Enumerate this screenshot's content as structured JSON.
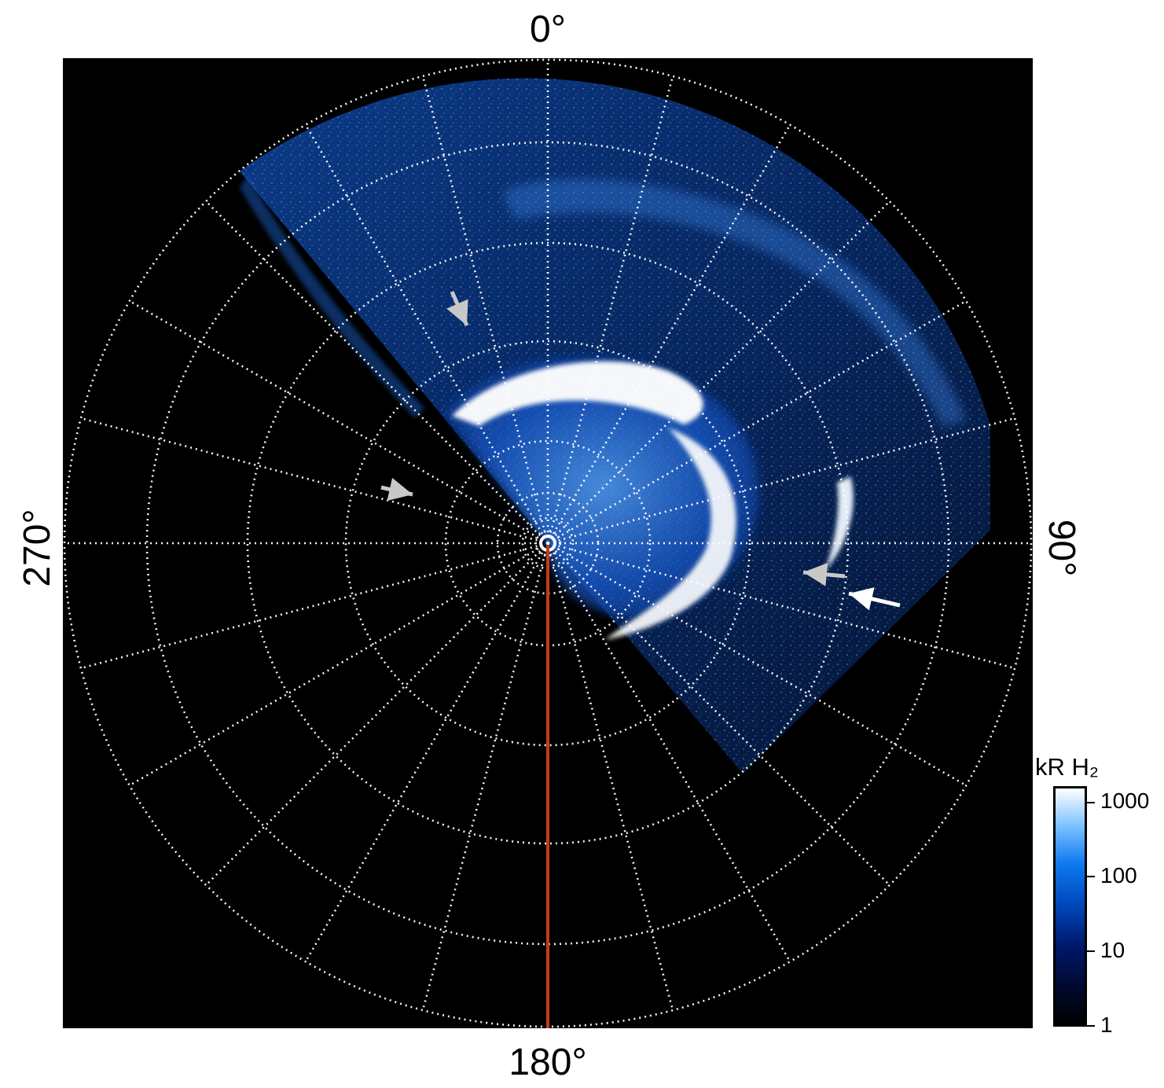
{
  "axes_labels": {
    "top": "0°",
    "right": "90°",
    "bottom": "180°",
    "left": "270°"
  },
  "colorbar": {
    "title": "kR H₂",
    "ticks": [
      "1",
      "10",
      "100",
      "1000"
    ]
  },
  "grid": {
    "radial_spokes_deg": 15,
    "rings": 9
  },
  "overlays": {
    "meridian_line_angle_deg": 180,
    "meridian_line_color": "#c63a17",
    "arrow_colors": [
      "#d0d0d0",
      "#ffffff"
    ]
  },
  "colors": {
    "background": "#000000",
    "grid": "#ffffff",
    "aurora_peak": "#ffffff",
    "aurora_mid": "#1e88ff",
    "aurora_low": "#0a2d8f"
  }
}
